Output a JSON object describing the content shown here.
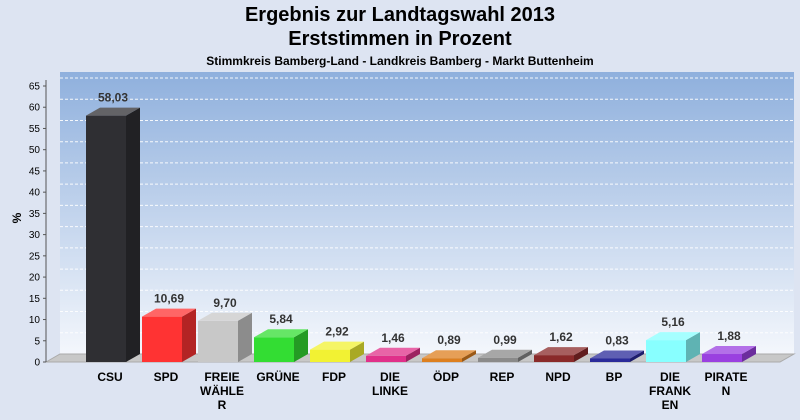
{
  "chart_data": {
    "type": "bar",
    "title": "Ergebnis zur Landtagswahl 2013",
    "subtitle": "Erststimmen in Prozent",
    "caption": "Stimmkreis Bamberg-Land - Landkreis Bamberg - Markt Buttenheim",
    "ylabel": "%",
    "ylim": [
      0,
      65
    ],
    "yticks": [
      0,
      5,
      10,
      15,
      20,
      25,
      30,
      35,
      40,
      45,
      50,
      55,
      60,
      65
    ],
    "categories": [
      [
        "CSU"
      ],
      [
        "SPD"
      ],
      [
        "FREIE",
        "WÄHLE",
        "R"
      ],
      [
        "GRÜNE"
      ],
      [
        "FDP"
      ],
      [
        "DIE",
        "LINKE"
      ],
      [
        "ÖDP"
      ],
      [
        "REP"
      ],
      [
        "NPD"
      ],
      [
        "BP"
      ],
      [
        "DIE",
        "FRANK",
        "EN"
      ],
      [
        "PIRATE",
        "N"
      ]
    ],
    "values": [
      58.03,
      10.69,
      9.7,
      5.84,
      2.92,
      1.46,
      0.89,
      0.99,
      1.62,
      0.83,
      5.16,
      1.88
    ],
    "value_labels": [
      "58,03",
      "10,69",
      "9,70",
      "5,84",
      "2,92",
      "1,46",
      "0,89",
      "0,99",
      "1,62",
      "0,83",
      "5,16",
      "1,88"
    ],
    "colors": [
      "#2f2f33",
      "#ff3333",
      "#c8c8c8",
      "#33dd33",
      "#f2f233",
      "#e0308a",
      "#dd7f1f",
      "#8a8a8a",
      "#8a2a2a",
      "#2a2a9a",
      "#88ffff",
      "#9a40e0"
    ],
    "grid": true
  }
}
